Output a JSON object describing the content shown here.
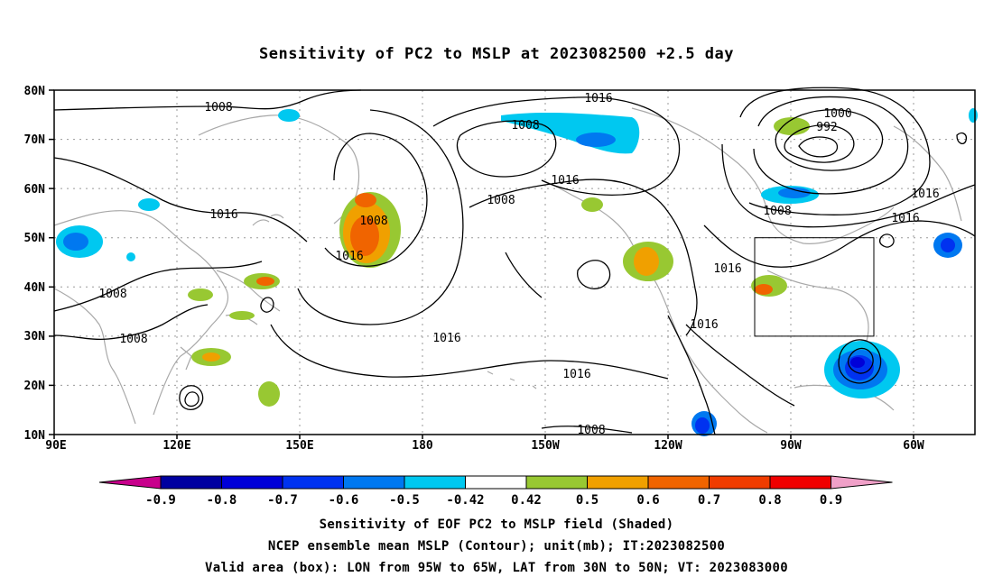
{
  "title": "Sensitivity of PC2 to MSLP at 2023082500 +2.5 day",
  "map": {
    "lat_labels": [
      "80N",
      "70N",
      "60N",
      "50N",
      "40N",
      "30N",
      "20N",
      "10N"
    ],
    "lon_labels": [
      "90E",
      "120E",
      "150E",
      "180",
      "150W",
      "120W",
      "90W",
      "60W"
    ],
    "contour_labels": [
      "1008",
      "1016",
      "1008",
      "1016",
      "1008",
      "1016",
      "1008",
      "1008",
      "1016",
      "1016",
      "1016",
      "1008",
      "1016",
      "1008",
      "1000",
      "992",
      "1016",
      "1016",
      "1016",
      "1008"
    ],
    "box": {
      "lon_from": "95W",
      "lon_to": "65W",
      "lat_from": "30N",
      "lat_to": "50N"
    }
  },
  "colorbar": {
    "labels": [
      "-0.9",
      "-0.8",
      "-0.7",
      "-0.6",
      "-0.5",
      "-0.42",
      "0.42",
      "0.5",
      "0.6",
      "0.7",
      "0.8",
      "0.9"
    ],
    "colors": [
      "#0000a0",
      "#0000d8",
      "#0032f0",
      "#0078f0",
      "#00c8f0",
      "#ffffff",
      "#98c832",
      "#f0a000",
      "#f06400",
      "#f03c00",
      "#f00000"
    ],
    "low_end": "#c8008c",
    "high_end": "#f0a0c8"
  },
  "footer": {
    "line1": "Sensitivity of EOF PC2 to MSLP field (Shaded)",
    "line2": "NCEP ensemble mean MSLP (Contour); unit(mb); IT:2023082500",
    "line3": "Valid area (box): LON from 95W to 65W, LAT from 30N to 50N; VT: 2023083000"
  }
}
